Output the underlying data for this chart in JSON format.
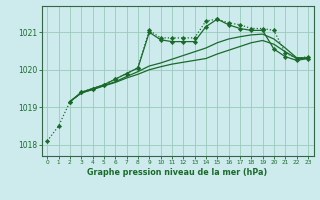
{
  "title": "Graphe pression niveau de la mer (hPa)",
  "background_color": "#cdeaed",
  "grid_color": "#99ccbb",
  "line_color": "#1a6b2a",
  "xlim": [
    -0.5,
    23.5
  ],
  "ylim": [
    1017.7,
    1021.7
  ],
  "yticks": [
    1018,
    1019,
    1020,
    1021
  ],
  "xticks": [
    0,
    1,
    2,
    3,
    4,
    5,
    6,
    7,
    8,
    9,
    10,
    11,
    12,
    13,
    14,
    15,
    16,
    17,
    18,
    19,
    20,
    21,
    22,
    23
  ],
  "series": [
    {
      "x": [
        0,
        1,
        2,
        3,
        4,
        5,
        6,
        7,
        8,
        9,
        10,
        11,
        12,
        13,
        14,
        15,
        16,
        17,
        18,
        19,
        20,
        21,
        22,
        23
      ],
      "y": [
        1018.1,
        1018.5,
        1019.15,
        1019.4,
        1019.5,
        1019.6,
        1019.75,
        1019.9,
        1020.05,
        1021.05,
        1020.85,
        1020.85,
        1020.85,
        1020.85,
        1021.3,
        1021.35,
        1021.25,
        1021.2,
        1021.1,
        1021.1,
        1021.05,
        1020.45,
        1020.3,
        1020.35
      ],
      "linestyle": "dotted",
      "marker": "D",
      "markersize": 2.2
    },
    {
      "x": [
        2,
        3,
        4,
        5,
        6,
        7,
        8,
        9,
        10,
        11,
        12,
        13,
        14,
        15,
        16,
        17,
        18,
        19,
        20,
        21,
        22,
        23
      ],
      "y": [
        1019.15,
        1019.4,
        1019.5,
        1019.6,
        1019.75,
        1019.9,
        1020.05,
        1021.0,
        1020.8,
        1020.75,
        1020.75,
        1020.75,
        1021.15,
        1021.35,
        1021.2,
        1021.1,
        1021.05,
        1021.05,
        1020.55,
        1020.35,
        1020.25,
        1020.3
      ],
      "linestyle": "solid",
      "marker": "D",
      "markersize": 2.2
    },
    {
      "x": [
        2,
        3,
        4,
        5,
        6,
        7,
        8,
        9,
        10,
        11,
        12,
        13,
        14,
        15,
        16,
        17,
        18,
        19,
        20,
        21,
        22,
        23
      ],
      "y": [
        1019.15,
        1019.38,
        1019.48,
        1019.58,
        1019.68,
        1019.82,
        1019.95,
        1020.1,
        1020.18,
        1020.28,
        1020.38,
        1020.48,
        1020.58,
        1020.72,
        1020.82,
        1020.88,
        1020.93,
        1020.95,
        1020.82,
        1020.58,
        1020.32,
        1020.32
      ],
      "linestyle": "solid",
      "marker": null,
      "markersize": 0
    },
    {
      "x": [
        2,
        3,
        4,
        5,
        6,
        7,
        8,
        9,
        10,
        11,
        12,
        13,
        14,
        15,
        16,
        17,
        18,
        19,
        20,
        21,
        22,
        23
      ],
      "y": [
        1019.15,
        1019.38,
        1019.47,
        1019.57,
        1019.66,
        1019.78,
        1019.88,
        1020.0,
        1020.08,
        1020.15,
        1020.2,
        1020.25,
        1020.3,
        1020.42,
        1020.52,
        1020.62,
        1020.72,
        1020.78,
        1020.68,
        1020.48,
        1020.3,
        1020.3
      ],
      "linestyle": "solid",
      "marker": null,
      "markersize": 0
    }
  ]
}
